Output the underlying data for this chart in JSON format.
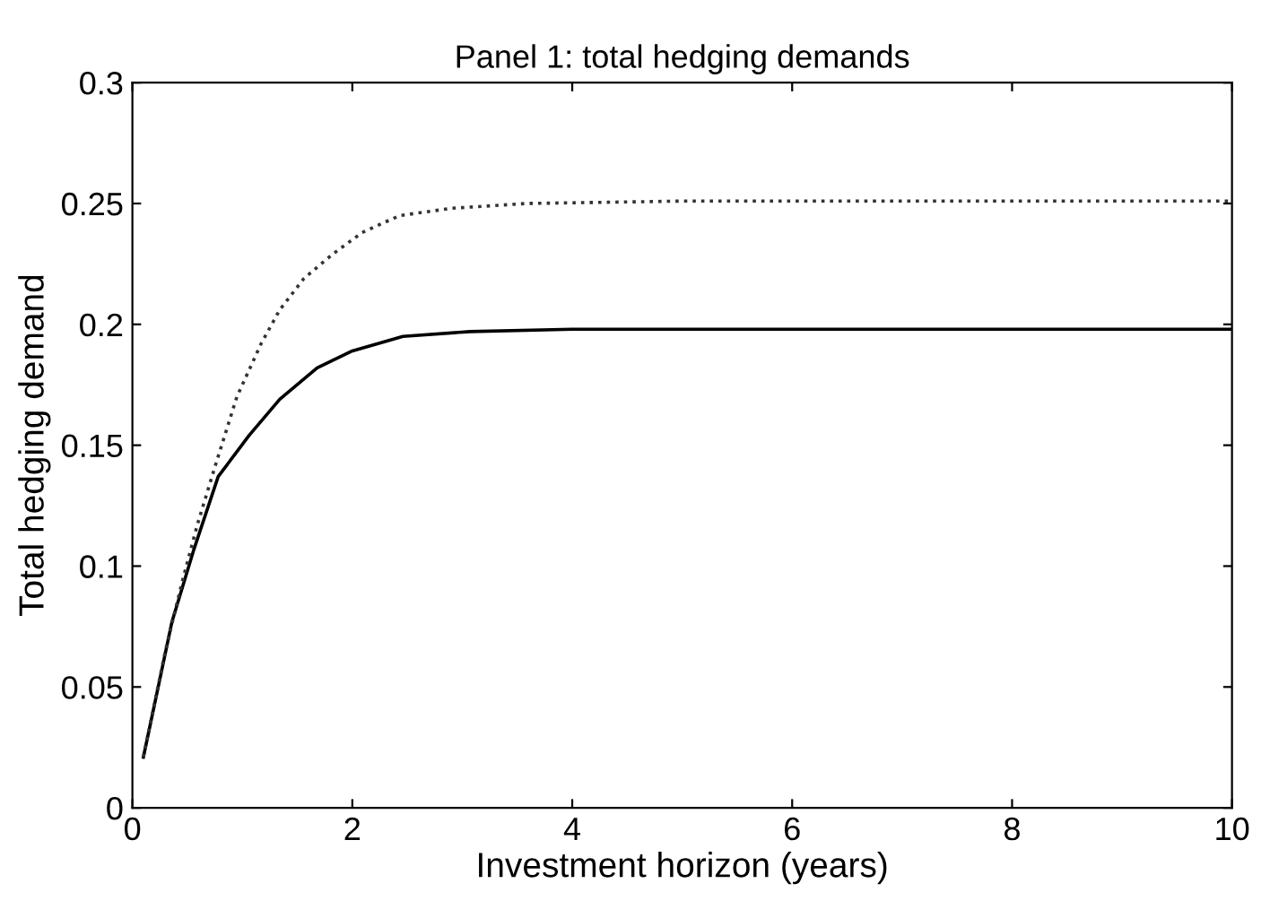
{
  "chart_data": {
    "type": "line",
    "title": "Panel 1: total hedging demands",
    "xlabel": "Investment horizon (years)",
    "ylabel": "Total hedging demand",
    "xlim": [
      0,
      10
    ],
    "ylim": [
      0,
      0.3
    ],
    "xticks": [
      0,
      2,
      4,
      6,
      8,
      10
    ],
    "yticks": [
      0,
      0.05,
      0.1,
      0.15,
      0.2,
      0.25,
      0.3
    ],
    "grid": false,
    "legend": false,
    "series": [
      {
        "color": "#000000",
        "line_style": "solid",
        "x": [
          0.1,
          0.36,
          0.56,
          0.78,
          1.06,
          1.34,
          1.68,
          2.0,
          2.46,
          3.07,
          4.0,
          6.0,
          8.0,
          10.0
        ],
        "values": [
          0.021,
          0.077,
          0.107,
          0.137,
          0.154,
          0.169,
          0.182,
          0.189,
          0.195,
          0.197,
          0.198,
          0.198,
          0.198,
          0.198
        ]
      },
      {
        "color": "#333333",
        "line_style": "dotted",
        "x": [
          0.1,
          0.3,
          0.45,
          0.59,
          0.75,
          0.95,
          1.17,
          1.34,
          1.56,
          1.82,
          2.09,
          2.43,
          2.9,
          3.58,
          5.0,
          7.0,
          10.0
        ],
        "values": [
          0.021,
          0.065,
          0.093,
          0.117,
          0.141,
          0.17,
          0.192,
          0.206,
          0.219,
          0.229,
          0.238,
          0.245,
          0.248,
          0.25,
          0.251,
          0.251,
          0.251
        ]
      }
    ]
  }
}
